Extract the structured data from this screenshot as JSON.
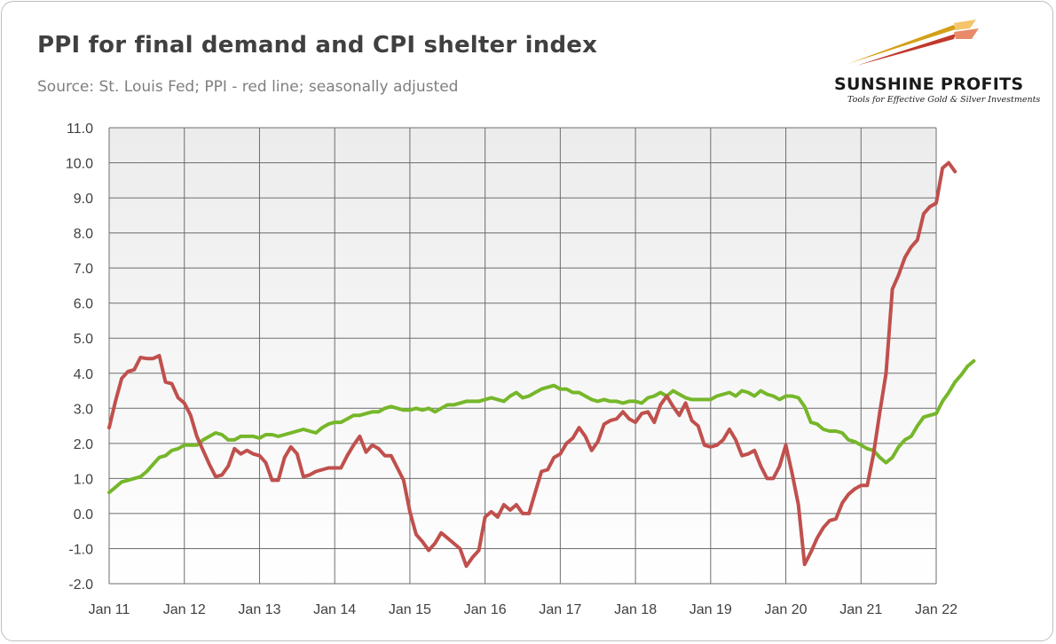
{
  "header": {
    "title": "PPI for final demand and CPI shelter index",
    "subtitle": "Source: St. Louis Fed; PPI - red line; seasonally adjusted"
  },
  "logo": {
    "name": "SUNSHINE PROFITS",
    "tagline": "Tools for Effective Gold & Silver Investments"
  },
  "chart_data": {
    "type": "line",
    "title": "PPI for final demand and CPI shelter index",
    "subtitle": "Source: St. Louis Fed; PPI - red line; seasonally adjusted",
    "ylim": [
      -2.0,
      11.0
    ],
    "y_ticks": [
      "11.0",
      "10.0",
      "9.0",
      "8.0",
      "7.0",
      "6.0",
      "5.0",
      "4.0",
      "3.0",
      "2.0",
      "1.0",
      "0.0",
      "-1.0",
      "-2.0"
    ],
    "x_ticks": [
      "Jan 11",
      "Jan 12",
      "Jan 13",
      "Jan 14",
      "Jan 15",
      "Jan 16",
      "Jan 17",
      "Jan 18",
      "Jan 19",
      "Jan 20",
      "Jan 21",
      "Jan 22"
    ],
    "x_range_months": "Jan 2011 - Jan 2022",
    "grid": true,
    "colors": {
      "ppi": "#c0504d",
      "shelter": "#76b72a",
      "plot_bg_top": "#f2f2f2",
      "plot_bg_bottom": "#ffffff",
      "grid": "#6e6e6e"
    },
    "series": [
      {
        "key": "ppi",
        "values": [
          2.45,
          3.2,
          3.85,
          4.05,
          4.1,
          4.45,
          4.42,
          4.42,
          4.5,
          3.75,
          3.7,
          3.3,
          3.15,
          2.8,
          2.2,
          1.8,
          1.4,
          1.05,
          1.1,
          1.35,
          1.85,
          1.7,
          1.8,
          1.7,
          1.65,
          1.45,
          0.95,
          0.95,
          1.6,
          1.9,
          1.7,
          1.05,
          1.1,
          1.2,
          1.25,
          1.3,
          1.3,
          1.3,
          1.65,
          1.95,
          2.2,
          1.75,
          1.95,
          1.85,
          1.65,
          1.65,
          1.3,
          0.95,
          0.05,
          -0.6,
          -0.8,
          -1.05,
          -0.85,
          -0.55,
          -0.7,
          -0.85,
          -1.0,
          -1.5,
          -1.25,
          -1.05,
          -0.1,
          0.05,
          -0.1,
          0.25,
          0.1,
          0.25,
          0.0,
          0.0,
          0.6,
          1.2,
          1.25,
          1.6,
          1.7,
          2.0,
          2.15,
          2.45,
          2.2,
          1.8,
          2.05,
          2.55,
          2.65,
          2.7,
          2.9,
          2.7,
          2.6,
          2.85,
          2.9,
          2.6,
          3.1,
          3.35,
          3.05,
          2.8,
          3.15,
          2.65,
          2.5,
          1.95,
          1.9,
          1.95,
          2.1,
          2.4,
          2.1,
          1.65,
          1.7,
          1.8,
          1.35,
          1.0,
          1.0,
          1.35,
          1.95,
          1.15,
          0.25,
          -1.45,
          -1.1,
          -0.7,
          -0.4,
          -0.2,
          -0.15,
          0.3,
          0.55,
          0.7,
          0.8,
          0.8,
          1.7,
          2.9,
          4.0,
          6.4,
          6.8,
          7.3,
          7.6,
          7.8,
          8.55,
          8.75,
          8.85,
          9.85,
          10.0,
          9.75
        ]
      },
      {
        "key": "shelter",
        "values": [
          0.6,
          0.75,
          0.9,
          0.95,
          1.0,
          1.05,
          1.2,
          1.4,
          1.6,
          1.65,
          1.8,
          1.85,
          1.95,
          1.95,
          1.95,
          2.1,
          2.2,
          2.3,
          2.25,
          2.1,
          2.1,
          2.2,
          2.2,
          2.2,
          2.15,
          2.25,
          2.25,
          2.2,
          2.25,
          2.3,
          2.35,
          2.4,
          2.35,
          2.3,
          2.45,
          2.55,
          2.6,
          2.6,
          2.7,
          2.8,
          2.8,
          2.85,
          2.9,
          2.9,
          3.0,
          3.05,
          3.0,
          2.95,
          2.95,
          3.0,
          2.95,
          3.0,
          2.9,
          3.0,
          3.1,
          3.1,
          3.15,
          3.2,
          3.2,
          3.2,
          3.25,
          3.3,
          3.25,
          3.2,
          3.35,
          3.45,
          3.3,
          3.35,
          3.45,
          3.55,
          3.6,
          3.65,
          3.55,
          3.55,
          3.45,
          3.45,
          3.35,
          3.25,
          3.2,
          3.25,
          3.2,
          3.2,
          3.15,
          3.2,
          3.2,
          3.15,
          3.3,
          3.35,
          3.45,
          3.35,
          3.5,
          3.4,
          3.3,
          3.25,
          3.25,
          3.25,
          3.25,
          3.35,
          3.4,
          3.45,
          3.35,
          3.5,
          3.45,
          3.35,
          3.5,
          3.4,
          3.35,
          3.25,
          3.35,
          3.35,
          3.3,
          3.05,
          2.6,
          2.55,
          2.4,
          2.35,
          2.35,
          2.3,
          2.1,
          2.05,
          1.95,
          1.85,
          1.8,
          1.6,
          1.45,
          1.6,
          1.9,
          2.1,
          2.2,
          2.5,
          2.75,
          2.8,
          2.85,
          3.2,
          3.45,
          3.75,
          3.95,
          4.2,
          4.35
        ]
      }
    ]
  }
}
